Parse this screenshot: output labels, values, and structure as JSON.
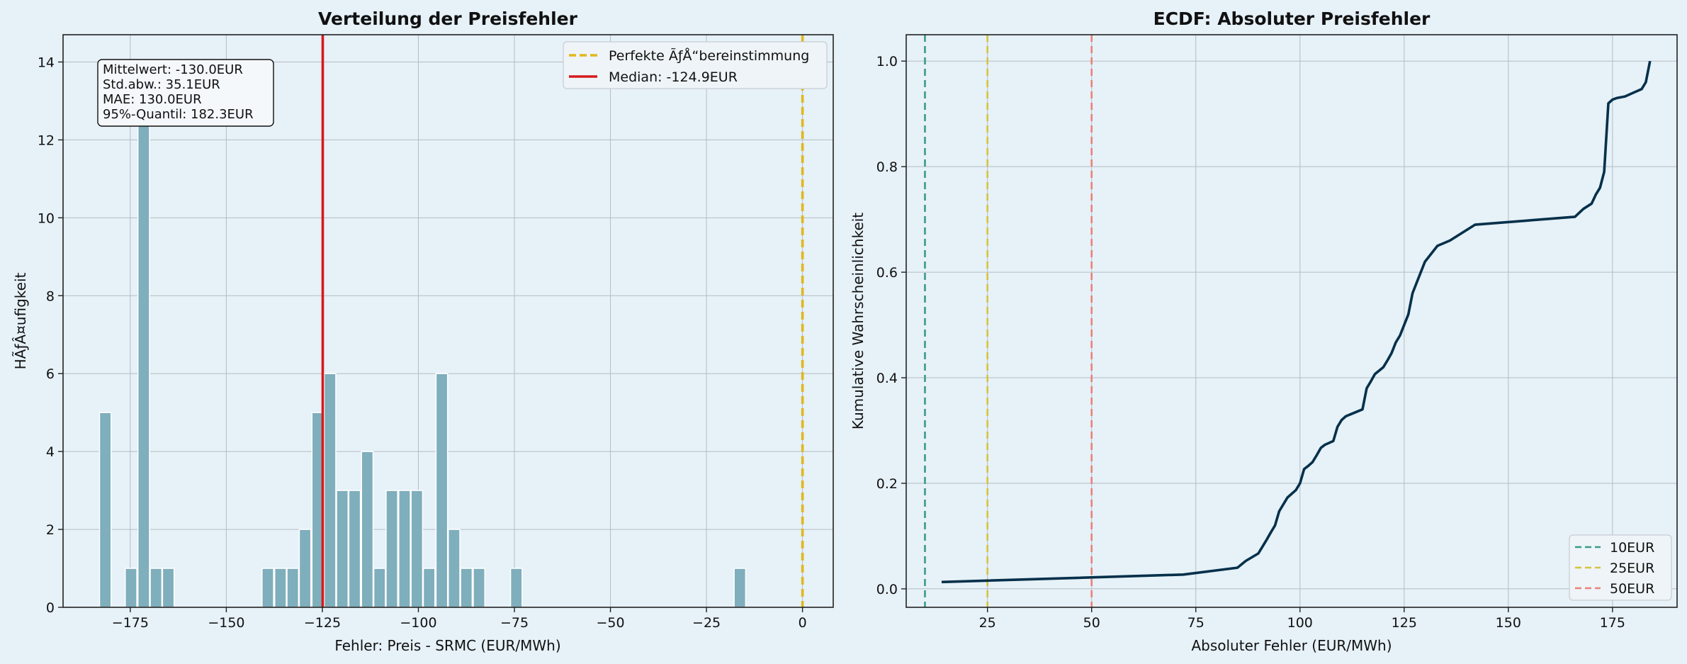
{
  "chart_data": [
    {
      "type": "bar",
      "title": "Verteilung der Preisfehler",
      "xlabel": "Fehler: Preis - SRMC (EUR/MWh)",
      "ylabel": "HÃƒÂ¤ufigkeit",
      "xlim": [
        -192.5,
        8
      ],
      "ylim": [
        0,
        14.7
      ],
      "xticks": [
        -175,
        -150,
        -125,
        -100,
        -75,
        -50,
        -25,
        0
      ],
      "xtick_labels": [
        "−175",
        "−150",
        "−125",
        "−100",
        "−75",
        "−50",
        "−25",
        "0"
      ],
      "yticks": [
        0,
        2,
        4,
        6,
        8,
        10,
        12,
        14
      ],
      "ytick_labels": [
        "0",
        "2",
        "4",
        "6",
        "8",
        "10",
        "12",
        "14"
      ],
      "grid": true,
      "bin_width": 3.0,
      "bins": [
        {
          "x": -181.5,
          "count": 5
        },
        {
          "x": -174.8,
          "count": 1
        },
        {
          "x": -171.5,
          "count": 13
        },
        {
          "x": -168.3,
          "count": 1
        },
        {
          "x": -165.1,
          "count": 1
        },
        {
          "x": -139.2,
          "count": 1
        },
        {
          "x": -135.9,
          "count": 1
        },
        {
          "x": -132.7,
          "count": 1
        },
        {
          "x": -129.5,
          "count": 2
        },
        {
          "x": -126.2,
          "count": 5
        },
        {
          "x": -123.0,
          "count": 6
        },
        {
          "x": -119.8,
          "count": 3
        },
        {
          "x": -116.6,
          "count": 3
        },
        {
          "x": -113.3,
          "count": 4
        },
        {
          "x": -110.1,
          "count": 1
        },
        {
          "x": -106.9,
          "count": 3
        },
        {
          "x": -103.6,
          "count": 3
        },
        {
          "x": -100.4,
          "count": 3
        },
        {
          "x": -97.2,
          "count": 1
        },
        {
          "x": -93.9,
          "count": 6
        },
        {
          "x": -90.7,
          "count": 2
        },
        {
          "x": -87.5,
          "count": 1
        },
        {
          "x": -84.2,
          "count": 1
        },
        {
          "x": -74.5,
          "count": 1
        },
        {
          "x": -16.3,
          "count": 1
        }
      ],
      "vlines": [
        {
          "x": 0,
          "label": "Perfekte ÃƒÅ“bereinstimmung",
          "color": "#e0b81c",
          "style": "dashed"
        },
        {
          "x": -124.9,
          "label": "Median: -124.9EUR",
          "color": "#d7191c",
          "style": "solid"
        }
      ],
      "legend_placement": "top-right",
      "stats_box": [
        "Mittelwert: -130.0EUR",
        "Std.abw.: 35.1EUR",
        "MAE: 130.0EUR",
        "95%-Quantil: 182.3EUR"
      ],
      "colors": {
        "bar": "#7faebc",
        "bar_edge": "#ffffff",
        "grid": "#b5bcc2",
        "axes_bg": "#e6f1f8"
      }
    },
    {
      "type": "line",
      "title": "ECDF: Absoluter Preisfehler",
      "xlabel": "Absoluter Fehler (EUR/MWh)",
      "ylabel": "Kumulative Wahrscheinlichkeit",
      "xlim": [
        5.5,
        190.5
      ],
      "ylim": [
        -0.035,
        1.05
      ],
      "xticks": [
        25,
        50,
        75,
        100,
        125,
        150,
        175
      ],
      "xtick_labels": [
        "25",
        "50",
        "75",
        "100",
        "125",
        "150",
        "175"
      ],
      "yticks": [
        0.0,
        0.2,
        0.4,
        0.6,
        0.8,
        1.0
      ],
      "ytick_labels": [
        "0.0",
        "0.2",
        "0.4",
        "0.6",
        "0.8",
        "1.0"
      ],
      "grid": true,
      "x": [
        14,
        72,
        85,
        87,
        90,
        91,
        92,
        93,
        94,
        95,
        97,
        98,
        99,
        100,
        101,
        102,
        103,
        104,
        105,
        106,
        108,
        109,
        110,
        111,
        115,
        116,
        117,
        118,
        120,
        121,
        122,
        123,
        124,
        125,
        126,
        127,
        128,
        130,
        131,
        133,
        136,
        138,
        142,
        166,
        168,
        170,
        171,
        172,
        173,
        174,
        175,
        176,
        178,
        180,
        182,
        183,
        184
      ],
      "y": [
        0.013,
        0.027,
        0.04,
        0.053,
        0.067,
        0.08,
        0.093,
        0.107,
        0.12,
        0.147,
        0.173,
        0.18,
        0.187,
        0.2,
        0.227,
        0.233,
        0.24,
        0.253,
        0.267,
        0.273,
        0.28,
        0.307,
        0.32,
        0.327,
        0.34,
        0.38,
        0.393,
        0.407,
        0.42,
        0.433,
        0.447,
        0.467,
        0.48,
        0.5,
        0.52,
        0.56,
        0.58,
        0.62,
        0.63,
        0.65,
        0.66,
        0.67,
        0.69,
        0.705,
        0.72,
        0.73,
        0.747,
        0.76,
        0.79,
        0.92,
        0.927,
        0.93,
        0.933,
        0.94,
        0.947,
        0.96,
        1.0
      ],
      "line_color": "#05304a",
      "vlines": [
        {
          "x": 10,
          "label": "10EUR",
          "color": "#3a9a88",
          "style": "dashed"
        },
        {
          "x": 25,
          "label": "25EUR",
          "color": "#d4c43c",
          "style": "dashed"
        },
        {
          "x": 50,
          "label": "50EUR",
          "color": "#ec8178",
          "style": "dashed"
        }
      ],
      "legend_placement": "bottom-right",
      "colors": {
        "grid": "#b5bcc2",
        "axes_bg": "#e6f1f8"
      }
    }
  ]
}
